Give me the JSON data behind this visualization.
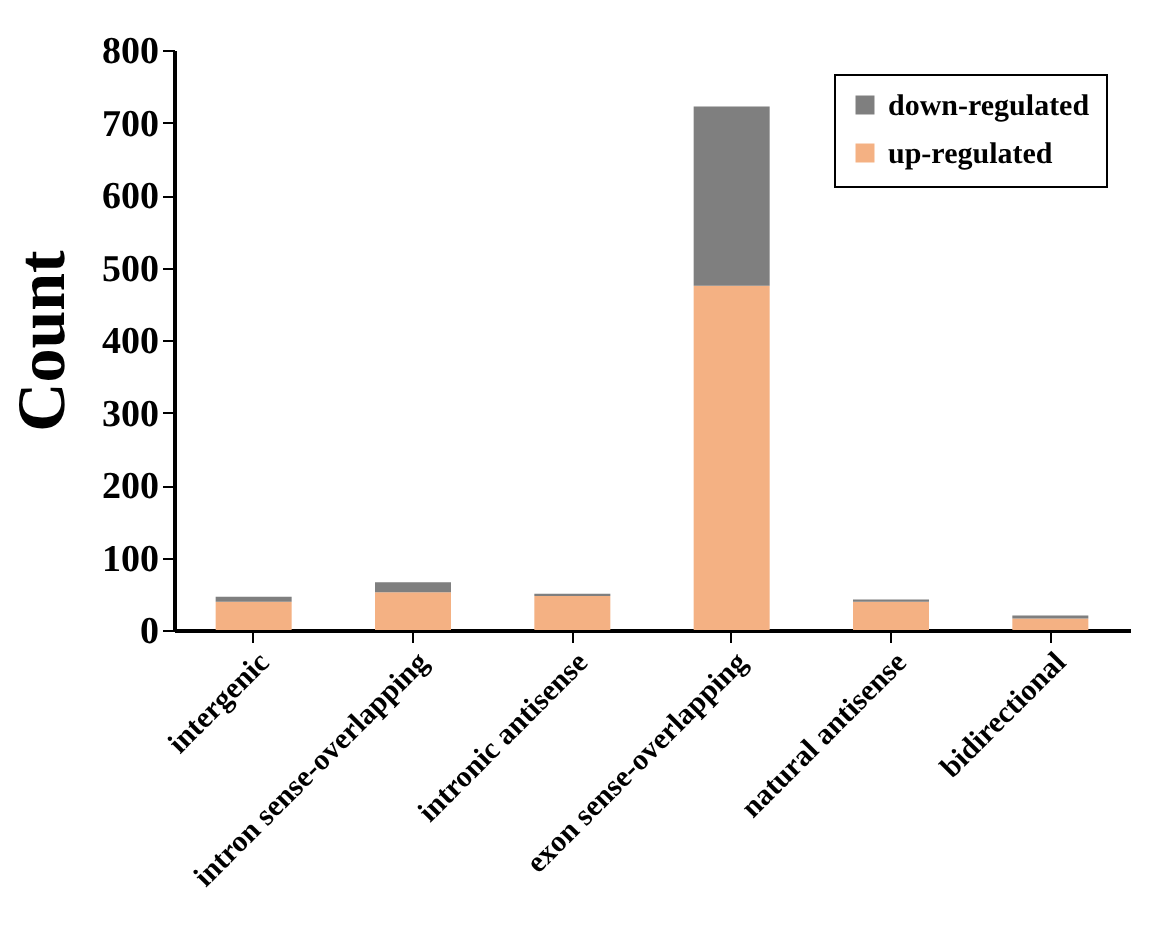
{
  "chart_data": {
    "type": "bar",
    "stacked": true,
    "ylabel": "Count",
    "categories": [
      "intergenic",
      "intron sense-overlapping",
      "intronic antisense",
      "exon sense-overlapping",
      "natural antisense",
      "bidirectional"
    ],
    "series": [
      {
        "name": "up-regulated",
        "color": "#f4b183",
        "values": [
          39,
          52,
          47,
          475,
          39,
          16
        ]
      },
      {
        "name": "down-regulated",
        "color": "#7f7f7f",
        "values": [
          7,
          14,
          3,
          247,
          3,
          4
        ]
      }
    ],
    "ylim": [
      0,
      800
    ],
    "yticks": [
      0,
      100,
      200,
      300,
      400,
      500,
      600,
      700,
      800
    ],
    "grid": false,
    "legend": "top right"
  }
}
